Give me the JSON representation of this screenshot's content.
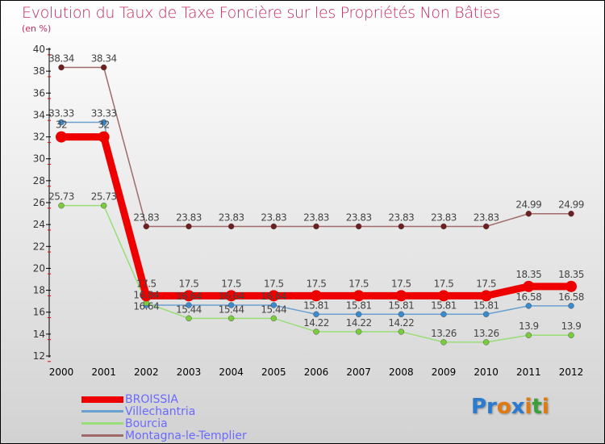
{
  "chart_data": {
    "type": "line",
    "title": "Evolution du Taux de Taxe Foncière sur les Propriétés Non Bâties",
    "subtitle": "(en %)",
    "x": [
      "2000",
      "2001",
      "2002",
      "2003",
      "2004",
      "2005",
      "2006",
      "2007",
      "2008",
      "2009",
      "2010",
      "2011",
      "2012"
    ],
    "ylim": [
      12,
      40
    ],
    "yticks": [
      12,
      14,
      16,
      18,
      20,
      22,
      24,
      26,
      28,
      30,
      32,
      34,
      36,
      38,
      40
    ],
    "series": [
      {
        "name": "Montagna-le-Templier",
        "color": "#6e1e1e",
        "line": "#a06a6a",
        "values": [
          38.34,
          38.34,
          23.83,
          23.83,
          23.83,
          23.83,
          23.83,
          23.83,
          23.83,
          23.83,
          23.83,
          24.99,
          24.99
        ]
      },
      {
        "name": "Villechantria",
        "color": "#3a8ad0",
        "line": "#6aa0d0",
        "values": [
          33.33,
          33.33,
          16.64,
          16.64,
          16.64,
          16.64,
          15.81,
          15.81,
          15.81,
          15.81,
          15.81,
          16.58,
          16.58
        ]
      },
      {
        "name": "Bourcia",
        "color": "#7acc3a",
        "line": "#99dd77",
        "values": [
          25.73,
          25.73,
          16.84,
          15.44,
          15.44,
          15.44,
          14.22,
          14.22,
          14.22,
          13.26,
          13.26,
          13.9,
          13.9
        ]
      },
      {
        "name": "BROISSIA",
        "color": "#ee0000",
        "line": "#ee0000",
        "values": [
          32,
          32,
          17.5,
          17.5,
          17.5,
          17.5,
          17.5,
          17.5,
          17.5,
          17.5,
          17.5,
          18.35,
          18.35
        ]
      }
    ],
    "legend_order": [
      "BROISSIA",
      "Villechantria",
      "Bourcia",
      "Montagna-le-Templier"
    ],
    "legend": "bottom-left"
  },
  "logo": "Proxiti"
}
